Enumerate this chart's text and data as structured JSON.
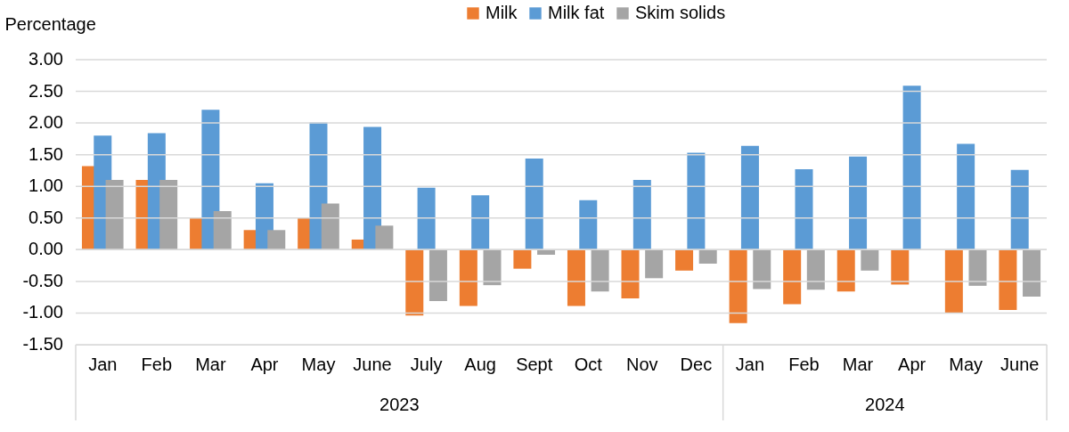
{
  "chart_data": {
    "type": "bar",
    "ylabel": "Percentage",
    "categories": [
      "Jan",
      "Feb",
      "Mar",
      "Apr",
      "May",
      "June",
      "July",
      "Aug",
      "Sept",
      "Oct",
      "Nov",
      "Dec",
      "Jan",
      "Feb",
      "Mar",
      "Apr",
      "May",
      "June"
    ],
    "series": [
      {
        "name": "Milk",
        "color": "#ed7d31",
        "values": [
          1.32,
          1.1,
          0.5,
          0.31,
          0.5,
          0.16,
          -1.04,
          -0.89,
          -0.3,
          -0.89,
          -0.77,
          -0.33,
          -1.16,
          -0.86,
          -0.66,
          -0.55,
          -1.0,
          -0.95
        ]
      },
      {
        "name": "Milk fat",
        "color": "#5b9bd5",
        "values": [
          1.8,
          1.84,
          2.21,
          1.05,
          2.01,
          1.94,
          0.98,
          0.86,
          1.44,
          0.78,
          1.1,
          1.53,
          1.64,
          1.27,
          1.47,
          2.59,
          1.67,
          1.26
        ]
      },
      {
        "name": "Skim solids",
        "color": "#a5a5a5",
        "values": [
          1.1,
          1.1,
          0.61,
          0.31,
          0.73,
          0.38,
          -0.81,
          -0.56,
          -0.08,
          -0.66,
          -0.45,
          -0.22,
          -0.62,
          -0.63,
          -0.33,
          0.0,
          -0.57,
          -0.74
        ]
      }
    ],
    "annotations": [
      "2023",
      "2024"
    ],
    "ylim": [
      -1.5,
      3.0
    ],
    "yticks": [
      {
        "value": -1.5,
        "label": "-1.50"
      },
      {
        "value": -1.0,
        "label": "-1.00"
      },
      {
        "value": -0.5,
        "label": "-0.50"
      },
      {
        "value": 0,
        "label": "0.00"
      },
      {
        "value": 0.5,
        "label": "0.50"
      },
      {
        "value": 1.0,
        "label": "1.00"
      },
      {
        "value": 1.5,
        "label": "1.50"
      },
      {
        "value": 2.0,
        "label": "2.00"
      },
      {
        "value": 2.5,
        "label": "2.50"
      },
      {
        "value": 3.0,
        "label": "3.00"
      }
    ],
    "grid": "y",
    "legend": "top"
  }
}
